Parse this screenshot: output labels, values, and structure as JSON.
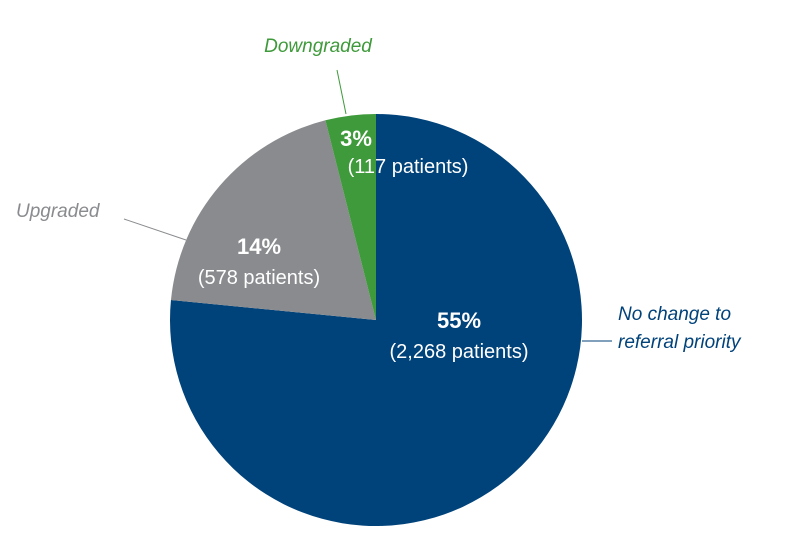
{
  "chart_data": {
    "type": "pie",
    "slices": [
      {
        "label": "No change to referral priority",
        "label_lines": [
          "No change to",
          "referral priority"
        ],
        "percent": "55%",
        "count": "(2,268 patients)",
        "value": 2268,
        "color": "#00427a",
        "label_color": "#00427a"
      },
      {
        "label": "Upgraded",
        "label_lines": [
          "Upgraded"
        ],
        "percent": "14%",
        "count": "(578 patients)",
        "value": 578,
        "color": "#898b8e",
        "label_color": "#898b8e"
      },
      {
        "label": "Downgraded",
        "label_lines": [
          "Downgraded"
        ],
        "percent": "3%",
        "count": "(117 patients)",
        "value": 117,
        "color": "#3e9a3a",
        "label_color": "#3e9a3a"
      }
    ],
    "start_angle": "12 o'clock",
    "direction": "clockwise"
  }
}
